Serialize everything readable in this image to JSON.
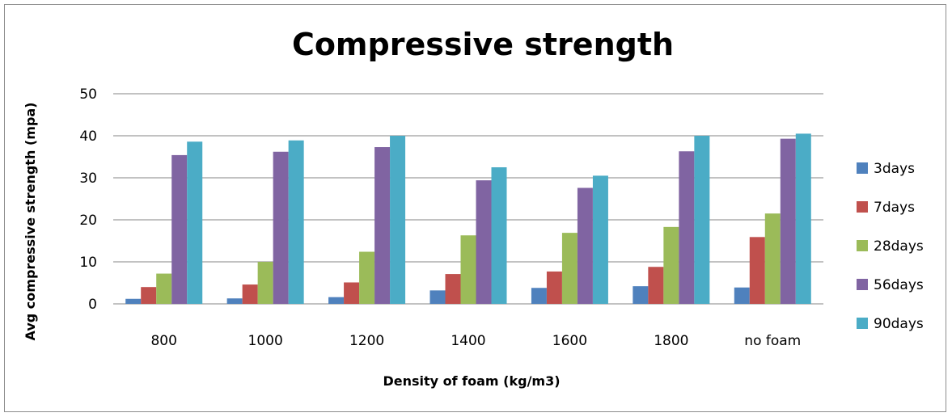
{
  "chart_data": {
    "type": "bar",
    "title": "Compressive strength",
    "xlabel": "Density of foam (kg/m3)",
    "ylabel": "Avg compressive strength (mpa)",
    "ylim": [
      0,
      50
    ],
    "yticks": [
      0,
      10,
      20,
      30,
      40,
      50
    ],
    "grid": true,
    "legend_position": "right",
    "categories": [
      "800",
      "1000",
      "1200",
      "1400",
      "1600",
      "1800",
      "no foam"
    ],
    "series": [
      {
        "name": "3days",
        "color": "#4f81bd",
        "values": [
          1.2,
          1.3,
          1.6,
          3.2,
          3.8,
          4.2,
          3.9
        ]
      },
      {
        "name": "7days",
        "color": "#c0504d",
        "values": [
          4.0,
          4.6,
          5.1,
          7.1,
          7.7,
          8.8,
          15.9
        ]
      },
      {
        "name": "28days",
        "color": "#9bbb59",
        "values": [
          7.2,
          10.0,
          12.4,
          16.3,
          16.9,
          18.3,
          21.5
        ]
      },
      {
        "name": "56days",
        "color": "#8064a2",
        "values": [
          35.4,
          36.2,
          37.3,
          29.4,
          27.6,
          36.3,
          39.3
        ]
      },
      {
        "name": "90days",
        "color": "#4bacc6",
        "values": [
          38.6,
          38.9,
          40.0,
          32.5,
          30.5,
          40.0,
          40.5
        ]
      }
    ]
  }
}
